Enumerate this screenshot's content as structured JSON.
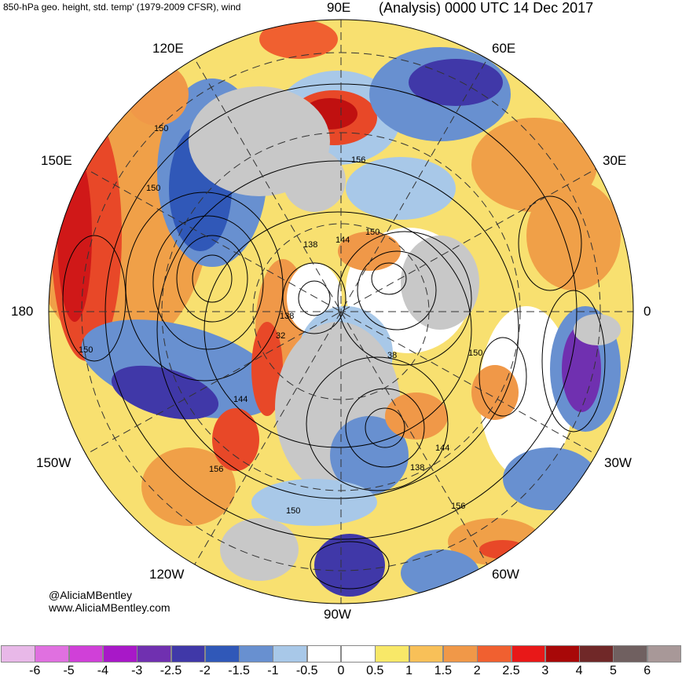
{
  "header": {
    "title_left": "850-hPa geo. height, std. temp' (1979-2009 CFSR), wind",
    "title_right": "(Analysis) 0000 UTC 14 Dec 2017"
  },
  "longitude_labels": {
    "e90": "90E",
    "e60": "60E",
    "e120": "120E",
    "e150": "150E",
    "e30": "30E",
    "d180": "180",
    "d0": "0",
    "w150": "150W",
    "w30": "30W",
    "w120": "120W",
    "w60": "60W",
    "w90": "90W"
  },
  "contour_labels": [
    "150",
    "150",
    "156",
    "138",
    "144",
    "150",
    "138",
    "32",
    "38",
    "150",
    "144",
    "156",
    "144",
    "138",
    "156",
    "150",
    "150"
  ],
  "credit": {
    "handle": "@AliciaMBentley",
    "site": "www.AliciaMBentley.com"
  },
  "colorbar": {
    "colors": [
      "#e8b8e8",
      "#e070e0",
      "#d040d8",
      "#a818c8",
      "#7030b0",
      "#4038a8",
      "#3058b8",
      "#6890d0",
      "#a8c8e8",
      "#ffffff",
      "#ffffff",
      "#f8e868",
      "#f8c058",
      "#f09848",
      "#f06030",
      "#e81818",
      "#a80808",
      "#702828",
      "#706060",
      "#a89898"
    ],
    "labels": [
      "-6",
      "-5",
      "-4",
      "-3",
      "-2.5",
      "-2",
      "-1.5",
      "-1",
      "-0.5",
      "0",
      "0.5",
      "1",
      "1.5",
      "2",
      "2.5",
      "3",
      "4",
      "5",
      "6"
    ]
  }
}
